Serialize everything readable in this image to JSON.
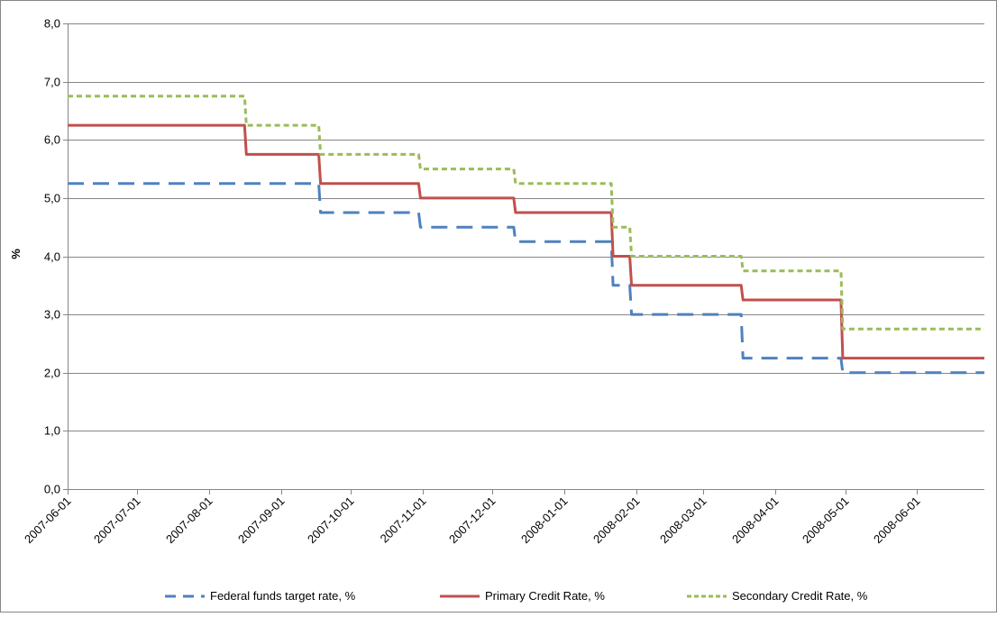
{
  "chart_data": {
    "type": "line",
    "step": true,
    "title": "",
    "xlabel": "",
    "ylabel": "%",
    "ylim": [
      0,
      8
    ],
    "y_ticks": [
      "0,0",
      "1,0",
      "2,0",
      "3,0",
      "4,0",
      "5,0",
      "6,0",
      "7,0",
      "8,0"
    ],
    "x_range": [
      "2007-06-01",
      "2008-06-30"
    ],
    "x_ticks": [
      "2007-06-01",
      "2007-07-01",
      "2007-08-01",
      "2007-09-01",
      "2007-10-01",
      "2007-11-01",
      "2007-12-01",
      "2008-01-01",
      "2008-02-01",
      "2008-03-01",
      "2008-04-01",
      "2008-05-01",
      "2008-06-01"
    ],
    "grid": "horizontal",
    "legend_position": "bottom",
    "series": [
      {
        "name": "Federal funds target rate, %",
        "color": "#4f81bd",
        "dash": "long-dash",
        "points": [
          [
            "2007-06-01",
            5.25
          ],
          [
            "2007-09-18",
            4.75
          ],
          [
            "2007-10-31",
            4.5
          ],
          [
            "2007-12-11",
            4.25
          ],
          [
            "2008-01-22",
            3.5
          ],
          [
            "2008-01-30",
            3.0
          ],
          [
            "2008-03-18",
            2.25
          ],
          [
            "2008-04-30",
            2.0
          ],
          [
            "2008-06-30",
            2.0
          ]
        ]
      },
      {
        "name": "Primary Credit Rate, %",
        "color": "#c0504d",
        "dash": "solid",
        "points": [
          [
            "2007-06-01",
            6.25
          ],
          [
            "2007-08-17",
            5.75
          ],
          [
            "2007-09-18",
            5.25
          ],
          [
            "2007-10-31",
            5.0
          ],
          [
            "2007-12-11",
            4.75
          ],
          [
            "2008-01-22",
            4.0
          ],
          [
            "2008-01-30",
            3.5
          ],
          [
            "2008-03-18",
            3.25
          ],
          [
            "2008-04-30",
            2.25
          ],
          [
            "2008-06-30",
            2.25
          ]
        ]
      },
      {
        "name": "Secondary Credit Rate, %",
        "color": "#9bbb59",
        "dash": "short-dash",
        "points": [
          [
            "2007-06-01",
            6.75
          ],
          [
            "2007-08-17",
            6.25
          ],
          [
            "2007-09-18",
            5.75
          ],
          [
            "2007-10-31",
            5.5
          ],
          [
            "2007-12-11",
            5.25
          ],
          [
            "2008-01-22",
            4.5
          ],
          [
            "2008-01-30",
            4.0
          ],
          [
            "2008-03-18",
            3.75
          ],
          [
            "2008-04-30",
            2.75
          ],
          [
            "2008-06-30",
            2.75
          ]
        ]
      }
    ]
  }
}
